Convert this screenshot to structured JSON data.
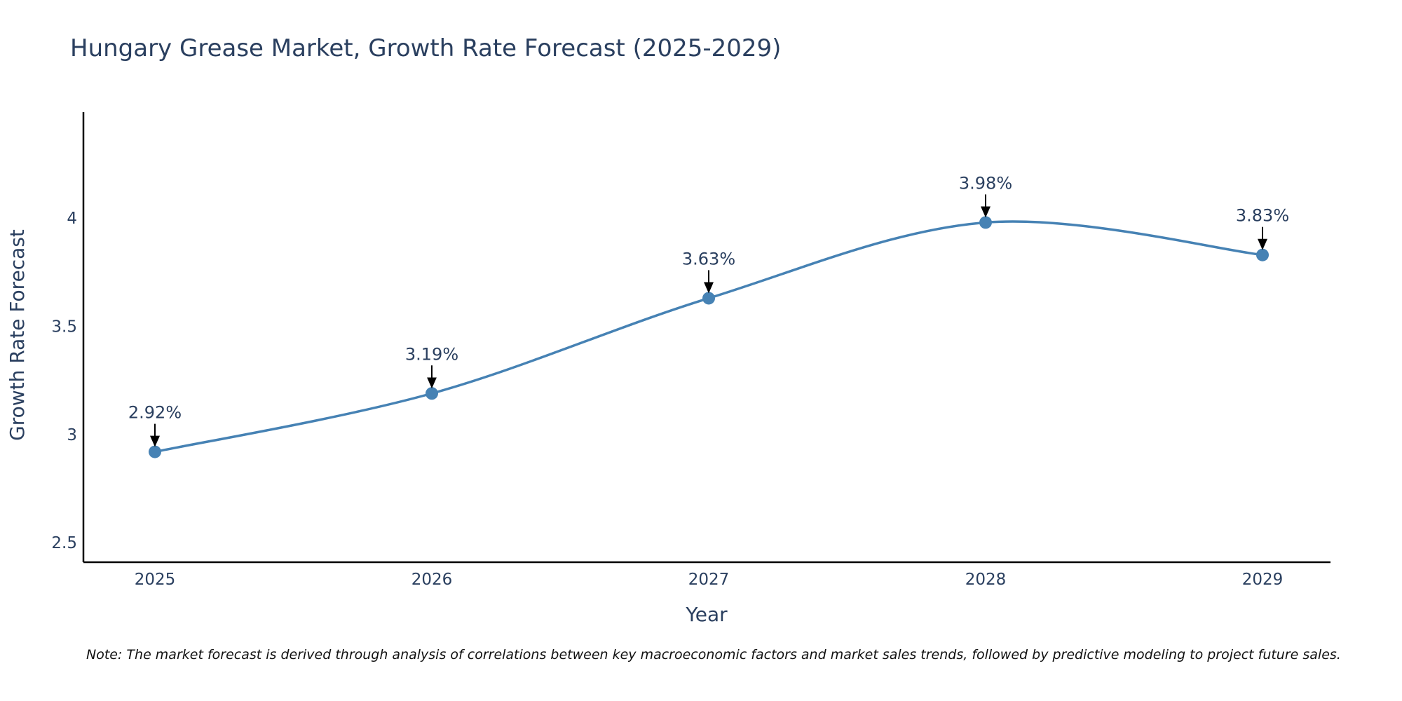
{
  "chart_data": {
    "type": "line",
    "title": "Hungary Grease Market, Growth Rate Forecast (2025-2029)",
    "xlabel": "Year",
    "ylabel": "Growth Rate Forecast",
    "x": [
      "2025",
      "2026",
      "2027",
      "2028",
      "2029"
    ],
    "series": [
      {
        "name": "Growth Rate Forecast",
        "values": [
          2.92,
          3.19,
          3.63,
          3.98,
          3.83
        ]
      }
    ],
    "data_labels": [
      "2.92%",
      "3.19%",
      "3.63%",
      "3.98%",
      "3.83%"
    ],
    "yticks": [
      2.5,
      3,
      3.5,
      4
    ],
    "ytick_labels": [
      "2.5",
      "3",
      "3.5",
      "4"
    ],
    "ylim": [
      2.41,
      4.49
    ],
    "grid": false,
    "line_shape": "spline",
    "colors": {
      "line": "#4682b4",
      "marker": "#4682b4",
      "arrow": "#000000",
      "axis": "#000000",
      "text": "#2a3f5f"
    }
  },
  "note": "Note: The market forecast is derived through analysis of correlations between key macroeconomic factors and market sales trends, followed by predictive modeling to project future sales."
}
